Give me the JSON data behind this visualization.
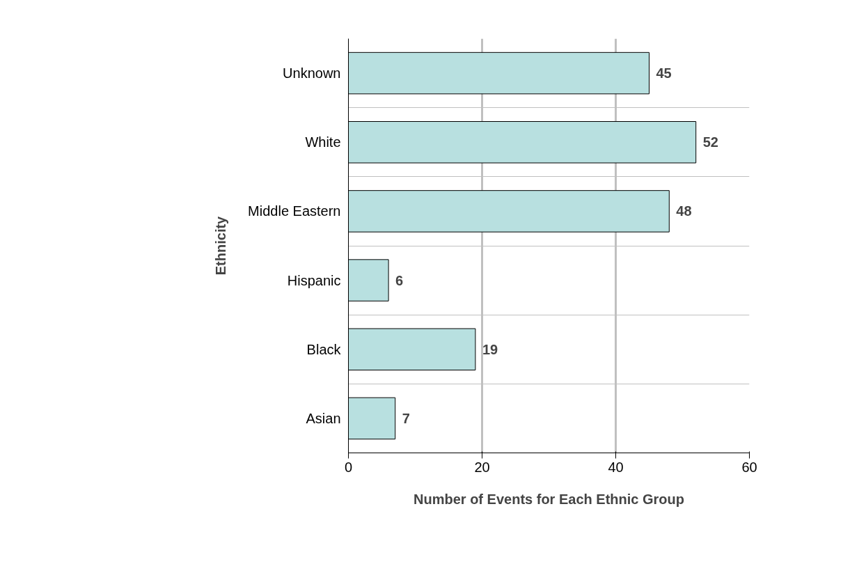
{
  "chart_data": {
    "type": "bar",
    "orientation": "horizontal",
    "xlabel": "Number of Events for Each Ethnic Group",
    "ylabel": "Ethnicity",
    "categories": [
      "Unknown",
      "White",
      "Middle Eastern",
      "Hispanic",
      "Black",
      "Asian"
    ],
    "values": [
      45,
      52,
      48,
      6,
      19,
      7
    ],
    "color": "#b8e0e0",
    "xlim": [
      0,
      60
    ],
    "xticks": [
      0,
      20,
      40,
      60
    ],
    "grid": true,
    "data_labels": true
  }
}
